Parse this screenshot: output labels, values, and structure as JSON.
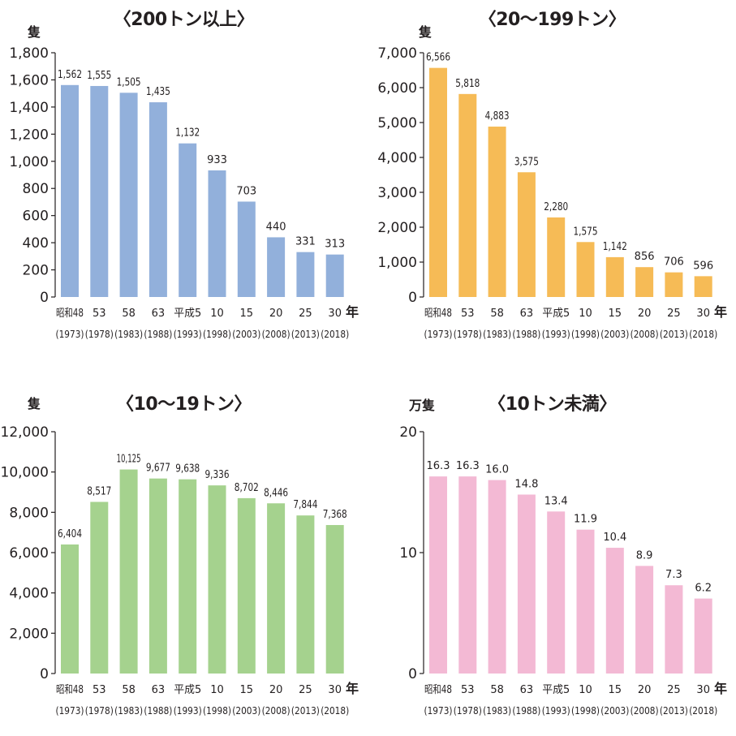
{
  "year_unit": "年",
  "categories": [
    "昭和48",
    "53",
    "58",
    "63",
    "平成5",
    "10",
    "15",
    "20",
    "25",
    "30"
  ],
  "years_ad": [
    "(1973)",
    "(1978)",
    "(1983)",
    "(1988)",
    "(1993)",
    "(1998)",
    "(2003)",
    "(2008)",
    "(2013)",
    "(2018)"
  ],
  "colors": {
    "blue": "#92b0db",
    "orange": "#f6bb56",
    "green": "#a5d28e",
    "pink": "#f3b9d4"
  },
  "chart_data": [
    {
      "type": "bar",
      "title": "〈200トン以上〉",
      "ylabel": "隻",
      "categories": [
        "昭和48",
        "53",
        "58",
        "63",
        "平成5",
        "10",
        "15",
        "20",
        "25",
        "30"
      ],
      "values": [
        1562,
        1555,
        1505,
        1435,
        1132,
        933,
        703,
        440,
        331,
        313
      ],
      "labels": [
        "1,562",
        "1,555",
        "1,505",
        "1,435",
        "1,132",
        "933",
        "703",
        "440",
        "331",
        "313"
      ],
      "ylim": [
        0,
        1800
      ],
      "yticks": [
        0,
        200,
        400,
        600,
        800,
        1000,
        1200,
        1400,
        1600,
        1800
      ],
      "ytick_labels": [
        "0",
        "200",
        "400",
        "600",
        "800",
        "1,000",
        "1,200",
        "1,400",
        "1,600",
        "1,800"
      ],
      "color": "#92b0db"
    },
    {
      "type": "bar",
      "title": "〈20～199トン〉",
      "ylabel": "隻",
      "categories": [
        "昭和48",
        "53",
        "58",
        "63",
        "平成5",
        "10",
        "15",
        "20",
        "25",
        "30"
      ],
      "values": [
        6566,
        5818,
        4883,
        3575,
        2280,
        1575,
        1142,
        856,
        706,
        596
      ],
      "labels": [
        "6,566",
        "5,818",
        "4,883",
        "3,575",
        "2,280",
        "1,575",
        "1,142",
        "856",
        "706",
        "596"
      ],
      "ylim": [
        0,
        7000
      ],
      "yticks": [
        0,
        1000,
        2000,
        3000,
        4000,
        5000,
        6000,
        7000
      ],
      "ytick_labels": [
        "0",
        "1,000",
        "2,000",
        "3,000",
        "4,000",
        "5,000",
        "6,000",
        "7,000"
      ],
      "color": "#f6bb56"
    },
    {
      "type": "bar",
      "title": "〈10～19トン〉",
      "ylabel": "隻",
      "categories": [
        "昭和48",
        "53",
        "58",
        "63",
        "平成5",
        "10",
        "15",
        "20",
        "25",
        "30"
      ],
      "values": [
        6404,
        8517,
        10125,
        9677,
        9638,
        9336,
        8702,
        8446,
        7844,
        7368
      ],
      "labels": [
        "6,404",
        "8,517",
        "10,125",
        "9,677",
        "9,638",
        "9,336",
        "8,702",
        "8,446",
        "7,844",
        "7,368"
      ],
      "ylim": [
        0,
        12000
      ],
      "yticks": [
        0,
        2000,
        4000,
        6000,
        8000,
        10000,
        12000
      ],
      "ytick_labels": [
        "0",
        "2,000",
        "4,000",
        "6,000",
        "8,000",
        "10,000",
        "12,000"
      ],
      "color": "#a5d28e"
    },
    {
      "type": "bar",
      "title": "〈10トン未満〉",
      "ylabel": "万隻",
      "categories": [
        "昭和48",
        "53",
        "58",
        "63",
        "平成5",
        "10",
        "15",
        "20",
        "25",
        "30"
      ],
      "values": [
        16.3,
        16.3,
        16.0,
        14.8,
        13.4,
        11.9,
        10.4,
        8.9,
        7.3,
        6.2
      ],
      "labels": [
        "16.3",
        "16.3",
        "16.0",
        "14.8",
        "13.4",
        "11.9",
        "10.4",
        "8.9",
        "7.3",
        "6.2"
      ],
      "ylim": [
        0,
        20
      ],
      "yticks": [
        0,
        10,
        20
      ],
      "ytick_labels": [
        "0",
        "10",
        "20"
      ],
      "color": "#f3b9d4"
    }
  ]
}
